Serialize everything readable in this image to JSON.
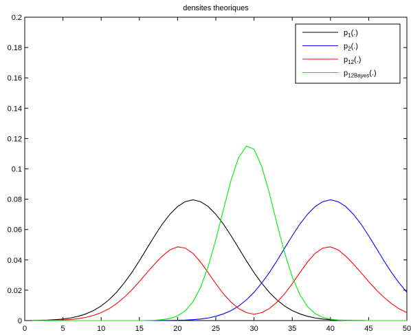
{
  "chart_data": {
    "type": "line",
    "title": "densites theoriques",
    "xlabel": "",
    "ylabel": "",
    "xlim": [
      0,
      50
    ],
    "ylim": [
      0,
      0.2
    ],
    "xticks": [
      0,
      5,
      10,
      15,
      20,
      25,
      30,
      35,
      40,
      45,
      50
    ],
    "yticks": [
      0,
      0.02,
      0.04,
      0.06,
      0.08,
      0.1,
      0.12,
      0.14,
      0.16,
      0.18,
      0.2
    ],
    "xtick_labels": [
      "0",
      "5",
      "10",
      "15",
      "20",
      "25",
      "30",
      "35",
      "40",
      "45",
      "50"
    ],
    "ytick_labels": [
      "0",
      "0.02",
      "0.04",
      "0.06",
      "0.08",
      "0.1",
      "0.12",
      "0.14",
      "0.16",
      "0.18",
      "0.2"
    ],
    "grid": false,
    "legend_position": "top-right",
    "x": [
      1,
      2,
      3,
      4,
      5,
      6,
      7,
      8,
      9,
      10,
      11,
      12,
      13,
      14,
      15,
      16,
      17,
      18,
      19,
      20,
      21,
      22,
      23,
      24,
      25,
      26,
      27,
      28,
      29,
      30,
      31,
      32,
      33,
      34,
      35,
      36,
      37,
      38,
      39,
      40,
      41,
      42,
      43,
      44,
      45,
      46,
      47,
      48,
      49,
      50
    ],
    "series": [
      {
        "legend_main": "p",
        "legend_sub": "1",
        "legend_suffix": "(.)",
        "color": "#000000",
        "values": [
          0.0001,
          0.0002,
          0.0003,
          0.0006,
          0.001,
          0.0017,
          0.0028,
          0.0044,
          0.0066,
          0.0096,
          0.0136,
          0.0186,
          0.0247,
          0.0316,
          0.0394,
          0.0477,
          0.0559,
          0.0636,
          0.0701,
          0.0752,
          0.0784,
          0.0796,
          0.0784,
          0.0752,
          0.0701,
          0.0636,
          0.0559,
          0.0477,
          0.0394,
          0.0316,
          0.0247,
          0.0186,
          0.0136,
          0.0096,
          0.0066,
          0.0044,
          0.0028,
          0.0017,
          0.001,
          0.0006,
          0.0003,
          0.0002,
          0.0001,
          0.0001,
          0.0,
          0.0,
          0.0,
          0.0,
          0.0,
          0.0
        ]
      },
      {
        "legend_main": "p",
        "legend_sub": "2",
        "legend_suffix": "(.)",
        "color": "#0000ff",
        "values": [
          0.0,
          0.0,
          0.0,
          0.0,
          0.0,
          0.0,
          0.0,
          0.0,
          0.0,
          0.0,
          0.0,
          0.0,
          0.0,
          0.0,
          0.0,
          0.0,
          0.0,
          0.0001,
          0.0001,
          0.0002,
          0.0003,
          0.0006,
          0.001,
          0.0017,
          0.0028,
          0.0044,
          0.0066,
          0.0096,
          0.0136,
          0.0186,
          0.0247,
          0.0316,
          0.0394,
          0.0477,
          0.0559,
          0.0636,
          0.0701,
          0.0752,
          0.0784,
          0.0796,
          0.0784,
          0.0752,
          0.0701,
          0.0636,
          0.0559,
          0.0477,
          0.0394,
          0.0316,
          0.0247,
          0.0186
        ]
      },
      {
        "legend_main": "p",
        "legend_sub": "12",
        "legend_suffix": "(.)",
        "color": "#ff0000",
        "values": [
          0.0,
          0.0001,
          0.0001,
          0.0002,
          0.0004,
          0.0007,
          0.0012,
          0.0021,
          0.0034,
          0.0052,
          0.0077,
          0.0111,
          0.0153,
          0.0202,
          0.0257,
          0.0316,
          0.0373,
          0.0425,
          0.0466,
          0.0486,
          0.0478,
          0.0443,
          0.0386,
          0.0316,
          0.0243,
          0.0176,
          0.0121,
          0.0079,
          0.0052,
          0.0042,
          0.0052,
          0.0079,
          0.0121,
          0.0176,
          0.0243,
          0.0316,
          0.0386,
          0.0443,
          0.0478,
          0.0486,
          0.0466,
          0.0425,
          0.0373,
          0.0316,
          0.0257,
          0.0202,
          0.0153,
          0.0111,
          0.0077,
          0.0052
        ]
      },
      {
        "legend_main": "p",
        "legend_sub": "12Bayes",
        "legend_suffix": "(.)",
        "color": "#00ee00",
        "values": [
          0.0,
          0.0,
          0.0,
          0.0,
          0.0,
          0.0,
          0.0,
          0.0,
          0.0,
          0.0,
          0.0,
          0.0,
          0.0,
          0.0,
          0.0,
          0.0001,
          0.0002,
          0.0006,
          0.0014,
          0.0031,
          0.0064,
          0.0123,
          0.0218,
          0.0356,
          0.0533,
          0.0733,
          0.0926,
          0.1076,
          0.115,
          0.113,
          0.1017,
          0.0842,
          0.064,
          0.0448,
          0.0288,
          0.017,
          0.0092,
          0.0046,
          0.0021,
          0.0009,
          0.0003,
          0.0001,
          0.0,
          0.0,
          0.0,
          0.0,
          0.0,
          0.0,
          0.0,
          0.0
        ]
      }
    ]
  }
}
